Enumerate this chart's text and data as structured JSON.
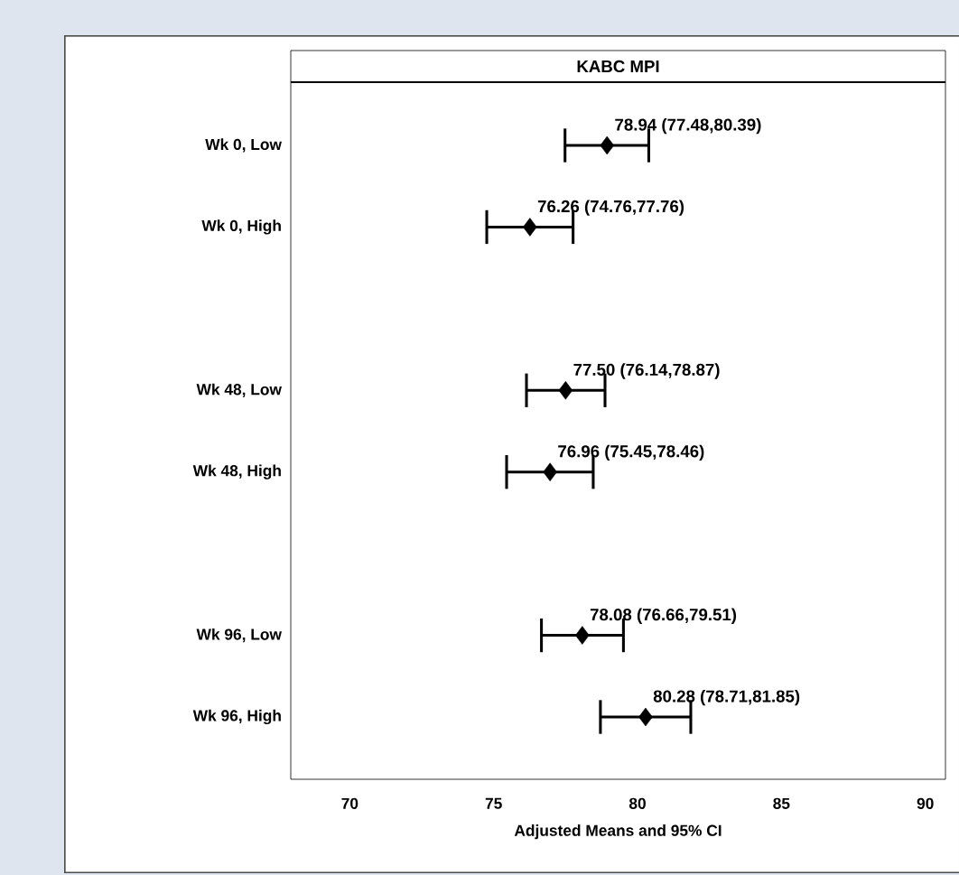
{
  "chart_data": {
    "type": "scatter",
    "orientation": "horizontal",
    "title": "KABC MPI",
    "xlabel": "Adjusted Means and 95% CI",
    "categories": [
      "Wk 0, Low",
      "Wk 0, High",
      null,
      "Wk 48, Low",
      "Wk 48, High",
      null,
      "Wk 96, Low",
      "Wk 96, High"
    ],
    "values": [
      78.94,
      76.26,
      null,
      77.5,
      76.96,
      null,
      78.08,
      80.28
    ],
    "errors": [
      [
        77.48,
        80.39
      ],
      [
        74.76,
        77.76
      ],
      null,
      [
        76.14,
        78.87
      ],
      [
        75.45,
        78.46
      ],
      null,
      [
        76.66,
        79.51
      ],
      [
        78.71,
        81.85
      ]
    ],
    "value_labels": [
      "78.94 (77.48,80.39)",
      "76.26 (74.76,77.76)",
      null,
      "77.50 (76.14,78.87)",
      "76.96 (75.45,78.46)",
      null,
      "78.08 (76.66,79.51)",
      "80.28 (78.71,81.85)"
    ],
    "color": "#000000",
    "marker": "diamond",
    "xlim": [
      67.95,
      90.7
    ],
    "xticks": [
      70,
      75,
      80,
      85,
      90
    ],
    "grid": false
  }
}
